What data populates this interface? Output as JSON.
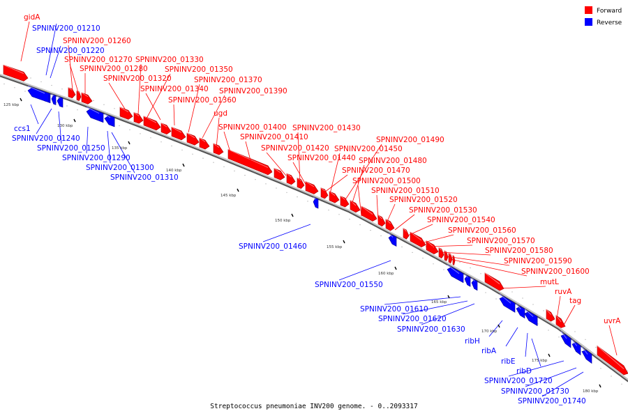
{
  "caption": "Streptococcus pneumoniae INV200 genome. - 0..2093317",
  "legend": {
    "forward_label": "Forward",
    "reverse_label": "Reverse",
    "forward_color": "#ff0000",
    "reverse_color": "#0000ff"
  },
  "genes": [
    {
      "name": "gidA",
      "strand": "forward"
    },
    {
      "name": "SPNINV200_01210",
      "strand": "reverse"
    },
    {
      "name": "SPNINV200_01220",
      "strand": "reverse"
    },
    {
      "name": "SPNINV200_01260",
      "strand": "forward"
    },
    {
      "name": "SPNINV200_01270",
      "strand": "forward"
    },
    {
      "name": "SPNINV200_01280",
      "strand": "forward"
    },
    {
      "name": "SPNINV200_01320",
      "strand": "forward"
    },
    {
      "name": "SPNINV200_01330",
      "strand": "forward"
    },
    {
      "name": "SPNINV200_01350",
      "strand": "forward"
    },
    {
      "name": "SPNINV200_01340",
      "strand": "forward"
    },
    {
      "name": "SPNINV200_01370",
      "strand": "forward"
    },
    {
      "name": "SPNINV200_01360",
      "strand": "forward"
    },
    {
      "name": "SPNINV200_01390",
      "strand": "forward"
    },
    {
      "name": "ugd",
      "strand": "forward"
    },
    {
      "name": "SPNINV200_01400",
      "strand": "forward"
    },
    {
      "name": "SPNINV200_01410",
      "strand": "forward"
    },
    {
      "name": "SPNINV200_01430",
      "strand": "forward"
    },
    {
      "name": "SPNINV200_01420",
      "strand": "forward"
    },
    {
      "name": "SPNINV200_01450",
      "strand": "forward"
    },
    {
      "name": "SPNINV200_01440",
      "strand": "forward"
    },
    {
      "name": "SPNINV200_01490",
      "strand": "forward"
    },
    {
      "name": "SPNINV200_01480",
      "strand": "forward"
    },
    {
      "name": "SPNINV200_01470",
      "strand": "forward"
    },
    {
      "name": "SPNINV200_01500",
      "strand": "forward"
    },
    {
      "name": "SPNINV200_01510",
      "strand": "forward"
    },
    {
      "name": "SPNINV200_01520",
      "strand": "forward"
    },
    {
      "name": "SPNINV200_01530",
      "strand": "forward"
    },
    {
      "name": "SPNINV200_01540",
      "strand": "forward"
    },
    {
      "name": "SPNINV200_01560",
      "strand": "forward"
    },
    {
      "name": "SPNINV200_01570",
      "strand": "forward"
    },
    {
      "name": "SPNINV200_01580",
      "strand": "forward"
    },
    {
      "name": "SPNINV200_01590",
      "strand": "forward"
    },
    {
      "name": "SPNINV200_01600",
      "strand": "forward"
    },
    {
      "name": "mutL",
      "strand": "forward"
    },
    {
      "name": "ruvA",
      "strand": "forward"
    },
    {
      "name": "tag",
      "strand": "forward"
    },
    {
      "name": "uvrA",
      "strand": "forward"
    },
    {
      "name": "ccs1",
      "strand": "reverse"
    },
    {
      "name": "SPNINV200_01240",
      "strand": "reverse"
    },
    {
      "name": "SPNINV200_01250",
      "strand": "reverse"
    },
    {
      "name": "SPNINV200_01290",
      "strand": "reverse"
    },
    {
      "name": "SPNINV200_01300",
      "strand": "reverse"
    },
    {
      "name": "SPNINV200_01310",
      "strand": "reverse"
    },
    {
      "name": "SPNINV200_01460",
      "strand": "reverse"
    },
    {
      "name": "SPNINV200_01550",
      "strand": "reverse"
    },
    {
      "name": "SPNINV200_01610",
      "strand": "reverse"
    },
    {
      "name": "SPNINV200_01620",
      "strand": "reverse"
    },
    {
      "name": "SPNINV200_01630",
      "strand": "reverse"
    },
    {
      "name": "ribH",
      "strand": "reverse"
    },
    {
      "name": "ribA",
      "strand": "reverse"
    },
    {
      "name": "ribE",
      "strand": "reverse"
    },
    {
      "name": "ribD",
      "strand": "reverse"
    },
    {
      "name": "SPNINV200_01720",
      "strand": "reverse"
    },
    {
      "name": "SPNINV200_01730",
      "strand": "reverse"
    },
    {
      "name": "SPNINV200_01740",
      "strand": "reverse"
    }
  ],
  "ticks": [
    "125 kbp",
    "130 kbp",
    "135 kbp",
    "140 kbp",
    "145 kbp",
    "150 kbp",
    "155 kbp",
    "160 kbp",
    "165 kbp",
    "170 kbp",
    "175 kbp",
    "180 kbp"
  ]
}
